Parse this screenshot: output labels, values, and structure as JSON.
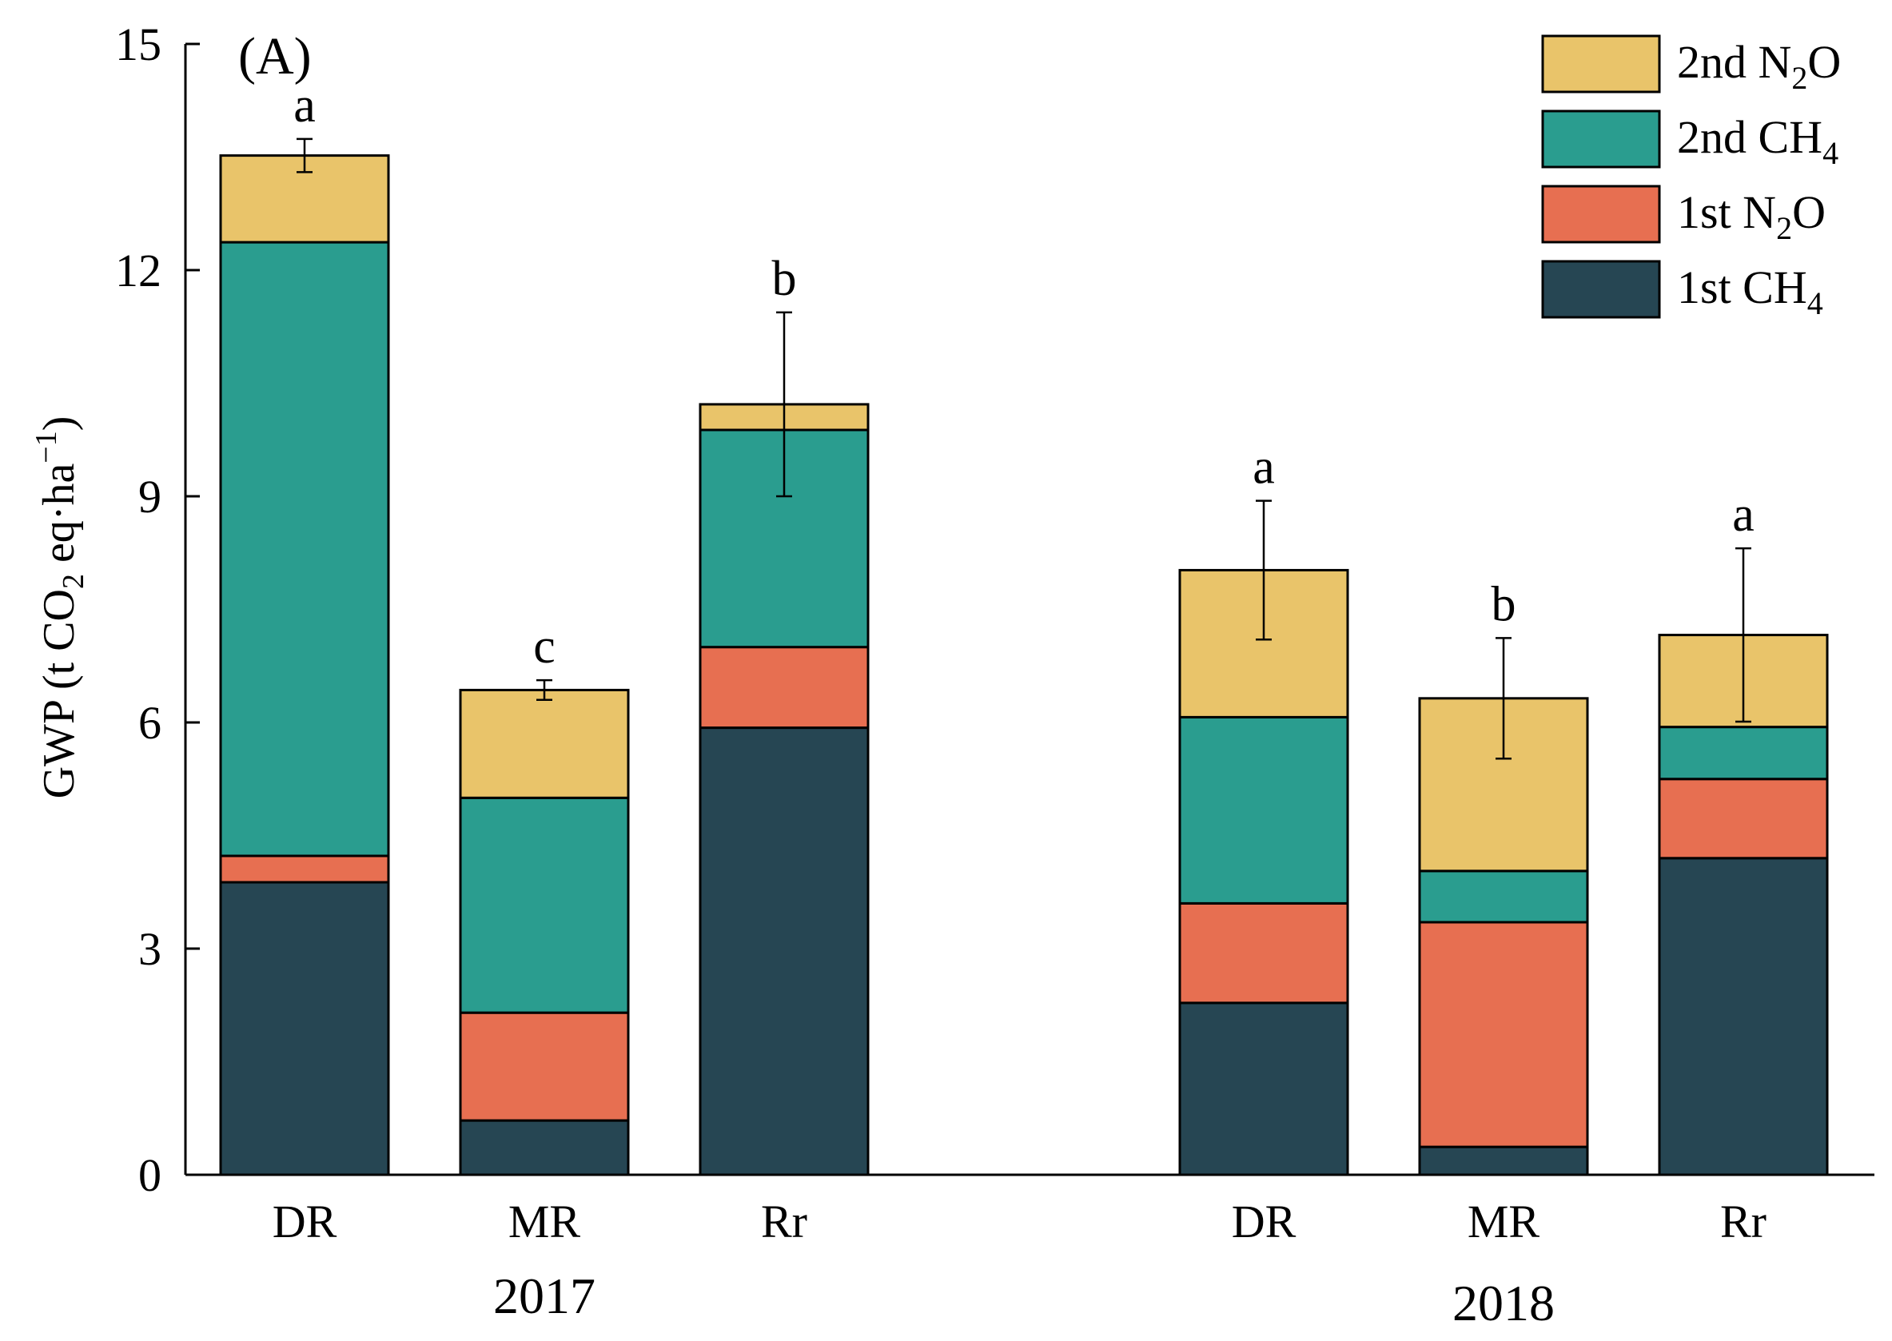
{
  "chart_data": {
    "type": "bar",
    "stacked": true,
    "panel_label": "(A)",
    "ylabel_parts": {
      "pre": "GWP (t CO",
      "sub": "2",
      "mid": " eq·ha",
      "sup": "−1",
      "post": ")"
    },
    "ylim": [
      0,
      15
    ],
    "yticks": [
      "0",
      "3",
      "6",
      "9",
      "12",
      "15"
    ],
    "groups": [
      {
        "year": "2017",
        "categories": [
          "DR",
          "MR",
          "Rr"
        ]
      },
      {
        "year": "2018",
        "categories": [
          "DR",
          "MR",
          "Rr"
        ]
      }
    ],
    "series": [
      {
        "name": "1st CH4",
        "label_main": "1st CH",
        "label_sub": "4",
        "color": "#264653",
        "values": [
          3.88,
          0.72,
          5.93,
          2.28,
          0.37,
          4.2
        ]
      },
      {
        "name": "1st N2O",
        "label_main": "1st N",
        "label_sub": "2",
        "label_post": "O",
        "color": "#E76F51",
        "values": [
          0.35,
          1.43,
          1.07,
          1.32,
          2.98,
          1.05
        ]
      },
      {
        "name": "2nd CH4",
        "label_main": "2nd CH",
        "label_sub": "4",
        "color": "#2A9D8F",
        "values": [
          8.14,
          2.85,
          2.88,
          2.47,
          0.68,
          0.69
        ]
      },
      {
        "name": "2nd N2O",
        "label_main": "2nd N",
        "label_sub": "2",
        "label_post": "O",
        "color": "#E9C46A",
        "values": [
          1.15,
          1.43,
          0.34,
          1.95,
          2.29,
          1.22
        ]
      }
    ],
    "totals": [
      13.52,
      6.43,
      10.22,
      8.02,
      6.32,
      7.16
    ],
    "errors": [
      0.22,
      0.13,
      1.22,
      0.92,
      0.8,
      1.15
    ],
    "significance": [
      "a",
      "c",
      "b",
      "a",
      "b",
      "a"
    ],
    "legend_position": "top-right",
    "legend_order": [
      "2nd N2O",
      "2nd CH4",
      "1st N2O",
      "1st CH4"
    ]
  }
}
